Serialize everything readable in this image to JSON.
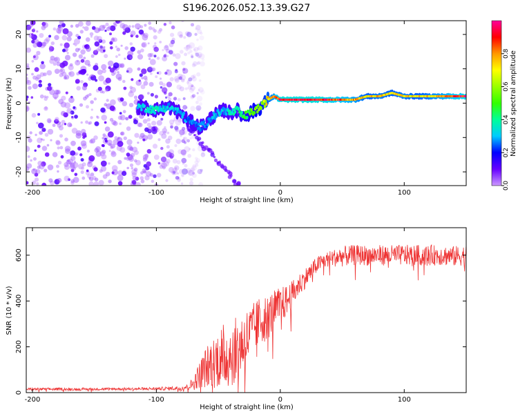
{
  "title": "S196.2026.052.13.39.G27",
  "chart_data": [
    {
      "type": "heatmap",
      "title": "S196.2026.052.13.39.G27",
      "xlabel": "Height of straight line (km)",
      "ylabel": "Frequency (Hz)",
      "xlim": [
        -205,
        150
      ],
      "ylim": [
        -24,
        24
      ],
      "xticks": [
        -200,
        -100,
        0,
        100
      ],
      "xtick_labels": [
        "-200",
        "-100",
        "0",
        "100"
      ],
      "yticks": [
        -20,
        -10,
        0,
        10,
        20
      ],
      "ytick_labels": [
        "-20",
        "-10",
        "0",
        "10",
        "20"
      ],
      "colorbar": {
        "label": "Normalized spectral amplitude",
        "range": [
          0,
          1
        ],
        "ticks": [
          0.0,
          0.2,
          0.4,
          0.6,
          0.8
        ],
        "tick_labels": [
          "0.0",
          "0.2",
          "0.4",
          "0.6",
          "0.8"
        ],
        "colors": [
          "#cc99ff",
          "#6600ff",
          "#0000ff",
          "#00ccff",
          "#00ff66",
          "#33ff00",
          "#ccff00",
          "#ffcc00",
          "#ff6600",
          "#ff0000",
          "#ff0099"
        ]
      },
      "ridge": {
        "x": [
          -115,
          -100,
          -90,
          -80,
          -75,
          -70,
          -65,
          -60,
          -55,
          -50,
          -45,
          -40,
          -35,
          -30,
          -25,
          -20,
          -15,
          -10,
          -5,
          0,
          10,
          20,
          30,
          40,
          50,
          60,
          70,
          80,
          90,
          100,
          110,
          120,
          130,
          140,
          150
        ],
        "y": [
          -1,
          -2,
          -1,
          -3,
          -5,
          -6,
          -7,
          -6,
          -4,
          -3,
          -2,
          -3,
          -2,
          -4,
          -3,
          -2,
          -1,
          1,
          2,
          1,
          1,
          1,
          1,
          1,
          1,
          1,
          2,
          2,
          3,
          2,
          2,
          2,
          2,
          2,
          2
        ],
        "amplitude": [
          0.3,
          0.35,
          0.3,
          0.3,
          0.25,
          0.25,
          0.25,
          0.25,
          0.3,
          0.3,
          0.3,
          0.35,
          0.4,
          0.45,
          0.5,
          0.55,
          0.6,
          0.7,
          0.8,
          0.95,
          0.95,
          0.95,
          0.95,
          0.9,
          0.85,
          0.8,
          0.7,
          0.75,
          0.7,
          0.75,
          0.7,
          0.75,
          0.8,
          0.85,
          0.9
        ]
      },
      "noise_region": {
        "x_from": -205,
        "x_to": -70,
        "amplitude_range": [
          0.02,
          0.15
        ]
      }
    },
    {
      "type": "line",
      "title": "",
      "xlabel": "Height of straight line (km)",
      "ylabel": "SNR (10 * v/v)",
      "xlim": [
        -205,
        150
      ],
      "ylim": [
        0,
        720
      ],
      "xticks": [
        -200,
        -100,
        0,
        100
      ],
      "xtick_labels": [
        "-200",
        "-100",
        "0",
        "100"
      ],
      "yticks": [
        0,
        200,
        400,
        600
      ],
      "ytick_labels": [
        "0",
        "200",
        "400",
        "600"
      ],
      "series": [
        {
          "name": "SNR",
          "color": "#ee3333",
          "x": [
            -205,
            -200,
            -180,
            -160,
            -140,
            -120,
            -100,
            -90,
            -80,
            -75,
            -70,
            -65,
            -60,
            -55,
            -50,
            -45,
            -40,
            -35,
            -30,
            -25,
            -20,
            -15,
            -10,
            -5,
            0,
            5,
            10,
            15,
            20,
            25,
            30,
            35,
            40,
            45,
            50,
            60,
            70,
            80,
            90,
            100,
            110,
            120,
            130,
            140,
            150
          ],
          "y": [
            15,
            15,
            15,
            15,
            16,
            16,
            17,
            18,
            20,
            25,
            40,
            80,
            110,
            130,
            150,
            160,
            170,
            190,
            220,
            250,
            290,
            320,
            330,
            360,
            380,
            400,
            430,
            470,
            500,
            530,
            560,
            575,
            585,
            590,
            595,
            600,
            600,
            600,
            600,
            600,
            600,
            600,
            600,
            595,
            600
          ],
          "noise_amplitude": [
            6,
            6,
            6,
            6,
            6,
            6,
            7,
            8,
            10,
            12,
            30,
            60,
            90,
            110,
            130,
            150,
            150,
            140,
            140,
            130,
            110,
            110,
            100,
            90,
            80,
            70,
            60,
            50,
            45,
            40,
            35,
            35,
            35,
            40,
            45,
            45,
            45,
            45,
            45,
            45,
            45,
            45,
            45,
            45,
            45
          ]
        }
      ]
    }
  ]
}
